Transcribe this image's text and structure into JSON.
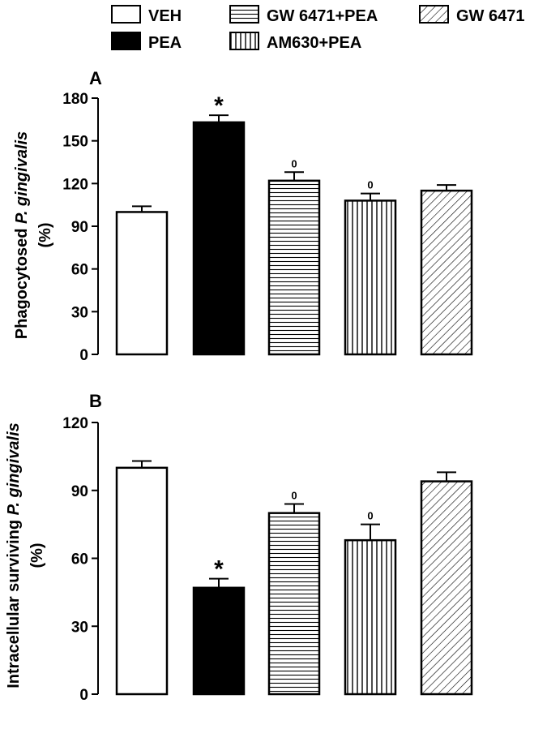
{
  "legend": [
    {
      "label": "VEH",
      "pattern": "white"
    },
    {
      "label": "PEA",
      "pattern": "black"
    },
    {
      "label": "GW 6471+PEA",
      "pattern": "hlines"
    },
    {
      "label": "AM630+PEA",
      "pattern": "vlines"
    },
    {
      "label": "GW 6471",
      "pattern": "diag"
    }
  ],
  "chart_data": [
    {
      "type": "bar",
      "panel_label": "A",
      "ylabel": [
        "Phagocytosed ",
        "P. gingivalis",
        "(%)"
      ],
      "categories": [
        "VEH",
        "PEA",
        "GW 6471+PEA",
        "AM630+PEA",
        "GW 6471"
      ],
      "values": [
        100,
        163,
        122,
        108,
        115
      ],
      "errors": [
        4,
        5,
        6,
        5,
        4
      ],
      "annotations": [
        "",
        "*",
        "0",
        "0",
        ""
      ],
      "ylim": [
        0,
        180
      ],
      "yticks": [
        "0",
        "30",
        "60",
        "90",
        "120",
        "150",
        "180"
      ]
    },
    {
      "type": "bar",
      "panel_label": "B",
      "ylabel": [
        "Intracellular surviving ",
        "P. gingivalis",
        "(%)"
      ],
      "categories": [
        "VEH",
        "PEA",
        "GW 6471+PEA",
        "AM630+PEA",
        "GW 6471"
      ],
      "values": [
        100,
        47,
        80,
        68,
        94
      ],
      "errors": [
        3,
        4,
        4,
        7,
        4
      ],
      "annotations": [
        "",
        "*",
        "0",
        "0",
        ""
      ],
      "ylim": [
        0,
        120
      ],
      "yticks": [
        "0",
        "30",
        "60",
        "90",
        "120"
      ]
    }
  ],
  "colors": {
    "ink": "#000000",
    "fill": "#ffffff",
    "solid": "#000000"
  }
}
